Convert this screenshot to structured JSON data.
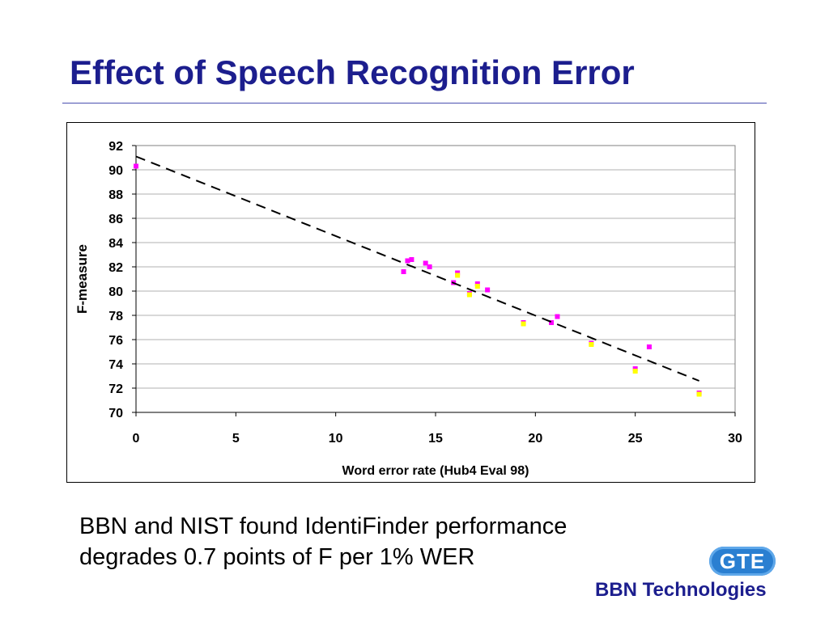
{
  "slide": {
    "title": "Effect of Speech Recognition Error",
    "caption_lines": [
      "BBN and NIST found IdentiFinder performance",
      "degrades 0.7 points of F per 1% WER"
    ],
    "logo_text": "GTE",
    "company": "BBN Technologies"
  },
  "chart_data": {
    "type": "scatter",
    "xlabel": "Word error rate (Hub4 Eval 98)",
    "ylabel": "F-measure",
    "xlim": [
      0,
      30
    ],
    "ylim": [
      70,
      92
    ],
    "xticks": [
      0,
      5,
      10,
      15,
      20,
      25,
      30
    ],
    "yticks": [
      70,
      72,
      74,
      76,
      78,
      80,
      82,
      84,
      86,
      88,
      90,
      92
    ],
    "grid": "horizontal",
    "legend": "none",
    "series": [
      {
        "color": "#ff00ff",
        "marker": "square",
        "points": [
          [
            0,
            90.3
          ],
          [
            13.4,
            81.6
          ],
          [
            13.6,
            82.5
          ],
          [
            13.8,
            82.6
          ],
          [
            14.5,
            82.3
          ],
          [
            14.7,
            82.0
          ],
          [
            15.9,
            80.7
          ],
          [
            16.1,
            81.5
          ],
          [
            16.7,
            79.8
          ],
          [
            17.1,
            80.6
          ],
          [
            17.6,
            80.1
          ],
          [
            19.4,
            77.4
          ],
          [
            20.8,
            77.4
          ],
          [
            21.1,
            77.9
          ],
          [
            22.8,
            75.7
          ],
          [
            25.0,
            73.6
          ],
          [
            25.7,
            75.4
          ],
          [
            28.2,
            71.6
          ]
        ]
      },
      {
        "color": "#ffff00",
        "marker": "square",
        "points": [
          [
            16.1,
            81.3
          ],
          [
            16.7,
            79.7
          ],
          [
            17.1,
            80.4
          ],
          [
            19.4,
            77.3
          ],
          [
            22.8,
            75.6
          ],
          [
            25.0,
            73.4
          ],
          [
            28.2,
            71.5
          ]
        ]
      }
    ],
    "trendline": {
      "style": "dashed",
      "color": "#000000",
      "x": [
        0,
        28.2
      ],
      "y": [
        91.1,
        72.6
      ]
    }
  }
}
